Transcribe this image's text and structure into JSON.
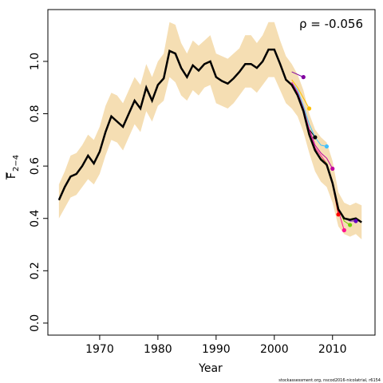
{
  "chart_data": {
    "type": "line",
    "xlabel": "Year",
    "ylabel": "F",
    "ylabel_sub": "2−4",
    "annotation": "ρ = -0.056",
    "footer": "stockassessment.org, nscod2016-nicolatrial, r6154",
    "xlim": [
      1961.1,
      2017.3
    ],
    "ylim": [
      -0.046,
      1.198
    ],
    "xticks": [
      1970,
      1980,
      1990,
      2000,
      2010
    ],
    "yticks": [
      {
        "value": 0,
        "label": "0.0"
      },
      0.2,
      0.4,
      0.6,
      0.8,
      {
        "value": 1,
        "label": "1.0"
      }
    ],
    "x": [
      1963,
      1964,
      1965,
      1966,
      1967,
      1968,
      1969,
      1970,
      1971,
      1972,
      1973,
      1974,
      1975,
      1976,
      1977,
      1978,
      1979,
      1980,
      1981,
      1982,
      1983,
      1984,
      1985,
      1986,
      1987,
      1988,
      1989,
      1990,
      1991,
      1992,
      1993,
      1994,
      1995,
      1996,
      1997,
      1998,
      1999,
      2000,
      2001,
      2002,
      2003,
      2004,
      2005,
      2006,
      2007,
      2008,
      2009,
      2010,
      2011,
      2012,
      2013,
      2014,
      2015
    ],
    "band": {
      "color": "#f5deb3",
      "upper": [
        0.53,
        0.58,
        0.64,
        0.65,
        0.68,
        0.72,
        0.7,
        0.75,
        0.83,
        0.88,
        0.87,
        0.84,
        0.89,
        0.94,
        0.91,
        0.99,
        0.94,
        1.0,
        1.03,
        1.15,
        1.14,
        1.07,
        1.03,
        1.08,
        1.06,
        1.08,
        1.1,
        1.03,
        1.02,
        1.01,
        1.03,
        1.05,
        1.1,
        1.1,
        1.07,
        1.1,
        1.15,
        1.15,
        1.08,
        1.02,
        0.99,
        0.95,
        0.89,
        0.8,
        0.74,
        0.71,
        0.69,
        0.62,
        0.5,
        0.46,
        0.45,
        0.46,
        0.45
      ],
      "lower": [
        0.4,
        0.44,
        0.48,
        0.49,
        0.52,
        0.55,
        0.53,
        0.57,
        0.64,
        0.7,
        0.69,
        0.66,
        0.71,
        0.76,
        0.73,
        0.81,
        0.77,
        0.83,
        0.85,
        0.94,
        0.92,
        0.87,
        0.85,
        0.89,
        0.87,
        0.9,
        0.91,
        0.84,
        0.83,
        0.82,
        0.84,
        0.87,
        0.9,
        0.9,
        0.88,
        0.91,
        0.94,
        0.94,
        0.89,
        0.84,
        0.82,
        0.79,
        0.73,
        0.65,
        0.58,
        0.54,
        0.52,
        0.46,
        0.37,
        0.34,
        0.33,
        0.34,
        0.32
      ]
    },
    "main": {
      "color": "#000000",
      "values": [
        0.47,
        0.52,
        0.56,
        0.57,
        0.6,
        0.64,
        0.61,
        0.655,
        0.73,
        0.79,
        0.77,
        0.75,
        0.8,
        0.85,
        0.82,
        0.9,
        0.85,
        0.91,
        0.935,
        1.04,
        1.03,
        0.975,
        0.94,
        0.985,
        0.965,
        0.99,
        1.0,
        0.94,
        0.925,
        0.915,
        0.935,
        0.96,
        0.99,
        0.99,
        0.975,
        1.0,
        1.045,
        1.045,
        0.99,
        0.93,
        0.91,
        0.87,
        0.81,
        0.72,
        0.66,
        0.625,
        0.605,
        0.535,
        0.435,
        0.4,
        0.395,
        0.4,
        0.385
      ]
    },
    "end_markers": true,
    "series": [
      {
        "color": "#8000a0",
        "x": [
          2003,
          2004,
          2005
        ],
        "values": [
          0.96,
          0.95,
          0.94
        ]
      },
      {
        "color": "#ffc000",
        "x": [
          2003,
          2004,
          2005,
          2006
        ],
        "values": [
          0.93,
          0.9,
          0.86,
          0.82
        ]
      },
      {
        "color": "#000000",
        "x": [
          2003,
          2004,
          2005,
          2006,
          2007
        ],
        "values": [
          0.91,
          0.87,
          0.81,
          0.74,
          0.71
        ]
      },
      {
        "color": "#40c0ff",
        "x": [
          2003,
          2004,
          2005,
          2006,
          2007,
          2008,
          2009
        ],
        "values": [
          0.92,
          0.89,
          0.83,
          0.76,
          0.71,
          0.68,
          0.675
        ]
      },
      {
        "color": "#c000a0",
        "x": [
          2003,
          2004,
          2005,
          2006,
          2007,
          2008,
          2009,
          2010
        ],
        "values": [
          0.92,
          0.88,
          0.82,
          0.74,
          0.68,
          0.65,
          0.63,
          0.59
        ]
      },
      {
        "color": "#ff0000",
        "x": [
          2003,
          2004,
          2005,
          2006,
          2007,
          2008,
          2009,
          2010,
          2011
        ],
        "values": [
          0.91,
          0.87,
          0.81,
          0.72,
          0.66,
          0.63,
          0.6,
          0.53,
          0.415
        ]
      },
      {
        "color": "#ff1090",
        "x": [
          2003,
          2004,
          2005,
          2006,
          2007,
          2008,
          2009,
          2010,
          2011,
          2012
        ],
        "values": [
          0.92,
          0.88,
          0.82,
          0.73,
          0.67,
          0.64,
          0.61,
          0.53,
          0.43,
          0.355
        ]
      },
      {
        "color": "#70d000",
        "x": [
          2003,
          2004,
          2005,
          2006,
          2007,
          2008,
          2009,
          2010,
          2011,
          2012,
          2013
        ],
        "values": [
          0.91,
          0.87,
          0.81,
          0.72,
          0.66,
          0.63,
          0.61,
          0.54,
          0.44,
          0.39,
          0.375
        ]
      },
      {
        "color": "#6000c0",
        "x": [
          2003,
          2004,
          2005,
          2006,
          2007,
          2008,
          2009,
          2010,
          2011,
          2012,
          2013,
          2014
        ],
        "values": [
          0.91,
          0.87,
          0.81,
          0.72,
          0.66,
          0.625,
          0.605,
          0.535,
          0.435,
          0.4,
          0.39,
          0.39
        ]
      }
    ]
  }
}
